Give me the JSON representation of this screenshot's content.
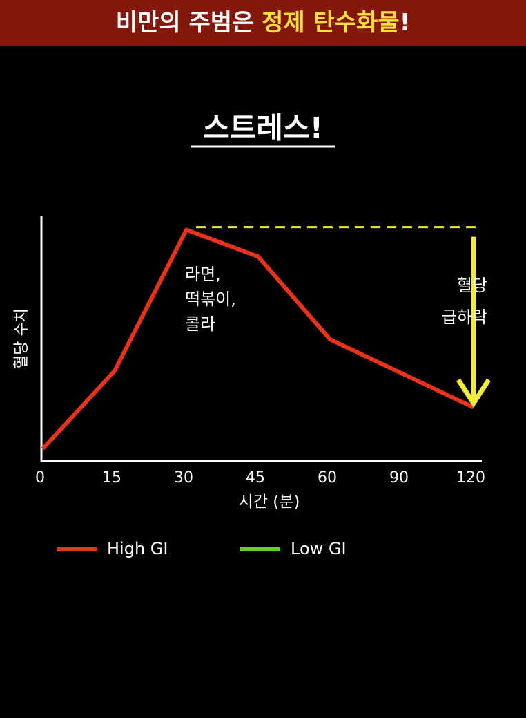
{
  "chart_data": {
    "type": "line",
    "banner": [
      "비만의 주범은 ",
      "정제 탄수화물",
      "!"
    ],
    "banner_highlight_color": "#ffe03a",
    "title": "스트레스!",
    "y_label": "혈당 수치",
    "x_label": "시간 (분)",
    "categories": [
      "0",
      "15",
      "30",
      "45",
      "60",
      "90",
      "120"
    ],
    "ylim": [
      0,
      100
    ],
    "series": [
      {
        "name": "High GI",
        "color": "#e8331c",
        "values": [
          5,
          37,
          95,
          84,
          50,
          36,
          22
        ]
      },
      {
        "name": "Low GI",
        "color": "#5fd12e",
        "values": [
          null,
          null,
          null,
          null,
          null,
          null,
          null
        ]
      }
    ],
    "annotations": [
      {
        "text": [
          "라면,",
          "떡볶이,",
          "콜라"
        ]
      },
      {
        "text": [
          "혈당",
          "급하락"
        ],
        "color": "#f4ea3a"
      }
    ]
  }
}
